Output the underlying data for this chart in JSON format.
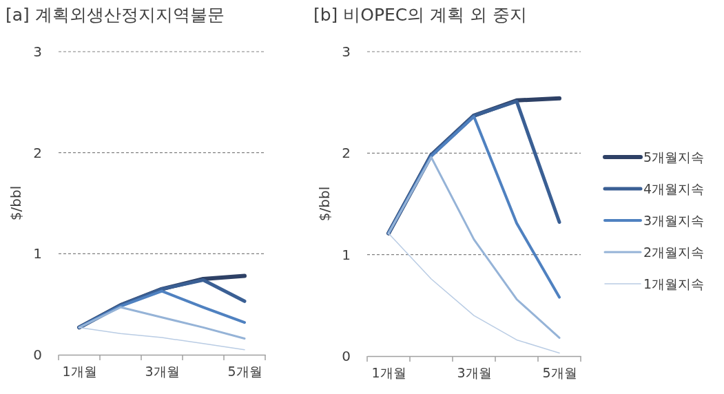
{
  "chart_data": [
    {
      "type": "line",
      "title": "[a] 계획외생산정지지역불문",
      "ylabel": "$/bbl",
      "categories": [
        "1개월",
        null,
        "3개월",
        null,
        "5개월"
      ],
      "ylim": [
        0,
        3
      ],
      "yticks": [
        0,
        1,
        2,
        3
      ],
      "grid": "y",
      "legend": false,
      "line_style": "solid",
      "marker": "none",
      "series": [
        {
          "color": "#2e4166",
          "values": [
            0.27,
            0.49,
            0.65,
            0.75,
            0.78
          ]
        },
        {
          "color": "#3a5f94",
          "values": [
            0.27,
            0.49,
            0.65,
            0.74,
            0.53
          ]
        },
        {
          "color": "#4f81c0",
          "values": [
            0.27,
            0.48,
            0.63,
            0.47,
            0.32
          ]
        },
        {
          "color": "#95b3d7",
          "values": [
            0.27,
            0.47,
            0.37,
            0.27,
            0.16
          ]
        },
        {
          "color": "#b9cce4",
          "values": [
            0.27,
            0.21,
            0.17,
            0.11,
            0.05
          ]
        }
      ]
    },
    {
      "type": "line",
      "title": "[b] 비OPEC의 계획 외 중지",
      "ylabel": "$/bbl",
      "categories": [
        "1개월",
        null,
        "3개월",
        null,
        "5개월"
      ],
      "ylim": [
        0,
        3
      ],
      "yticks": [
        0,
        1,
        2,
        3
      ],
      "grid": "y",
      "legend": "right",
      "line_style": "solid",
      "marker": "none",
      "series": [
        {
          "name": "5개월지속",
          "color": "#2e4166",
          "values": [
            1.21,
            1.98,
            2.37,
            2.52,
            2.54
          ]
        },
        {
          "name": "4개월지속",
          "color": "#3a5f94",
          "values": [
            1.21,
            1.98,
            2.37,
            2.51,
            1.32
          ]
        },
        {
          "name": "3개월지속",
          "color": "#4f81c0",
          "values": [
            1.21,
            1.97,
            2.36,
            1.31,
            0.58
          ]
        },
        {
          "name": "2개월지속",
          "color": "#95b3d7",
          "values": [
            1.21,
            1.96,
            1.15,
            0.56,
            0.18
          ]
        },
        {
          "name": "1개월지속",
          "color": "#b9cce4",
          "values": [
            1.21,
            0.76,
            0.4,
            0.16,
            0.03
          ]
        }
      ]
    }
  ]
}
